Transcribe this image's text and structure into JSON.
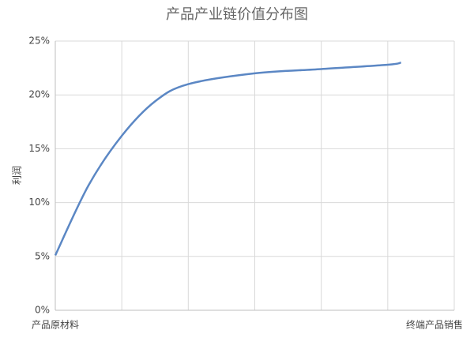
{
  "chart_data": {
    "type": "line",
    "title": "产品产业链价值分布图",
    "y_label": "利润",
    "x": [
      0,
      0.5,
      1,
      1.5,
      2,
      3,
      4,
      5,
      5.2
    ],
    "series": [
      {
        "color": "#5b87c4",
        "values": [
          5.1,
          11.6,
          16.2,
          19.4,
          21.0,
          22.0,
          22.4,
          22.8,
          23.0
        ]
      }
    ],
    "xlim": [
      0,
      6
    ],
    "xticks": [
      {
        "value": 0,
        "label": "产品原材料"
      },
      {
        "value": 1,
        "label": null
      },
      {
        "value": 2,
        "label": null
      },
      {
        "value": 3,
        "label": null
      },
      {
        "value": 4,
        "label": null
      },
      {
        "value": 5,
        "label": null
      },
      {
        "value": 6,
        "label": "终端产品销售"
      }
    ],
    "ylim": [
      0,
      25
    ],
    "yticks": [
      {
        "value": 0,
        "label": "0%"
      },
      {
        "value": 5,
        "label": "5%"
      },
      {
        "value": 10,
        "label": "10%"
      },
      {
        "value": 15,
        "label": "15%"
      },
      {
        "value": 20,
        "label": "20%"
      },
      {
        "value": 25,
        "label": "25%"
      }
    ],
    "grid": true,
    "smooth": true
  }
}
